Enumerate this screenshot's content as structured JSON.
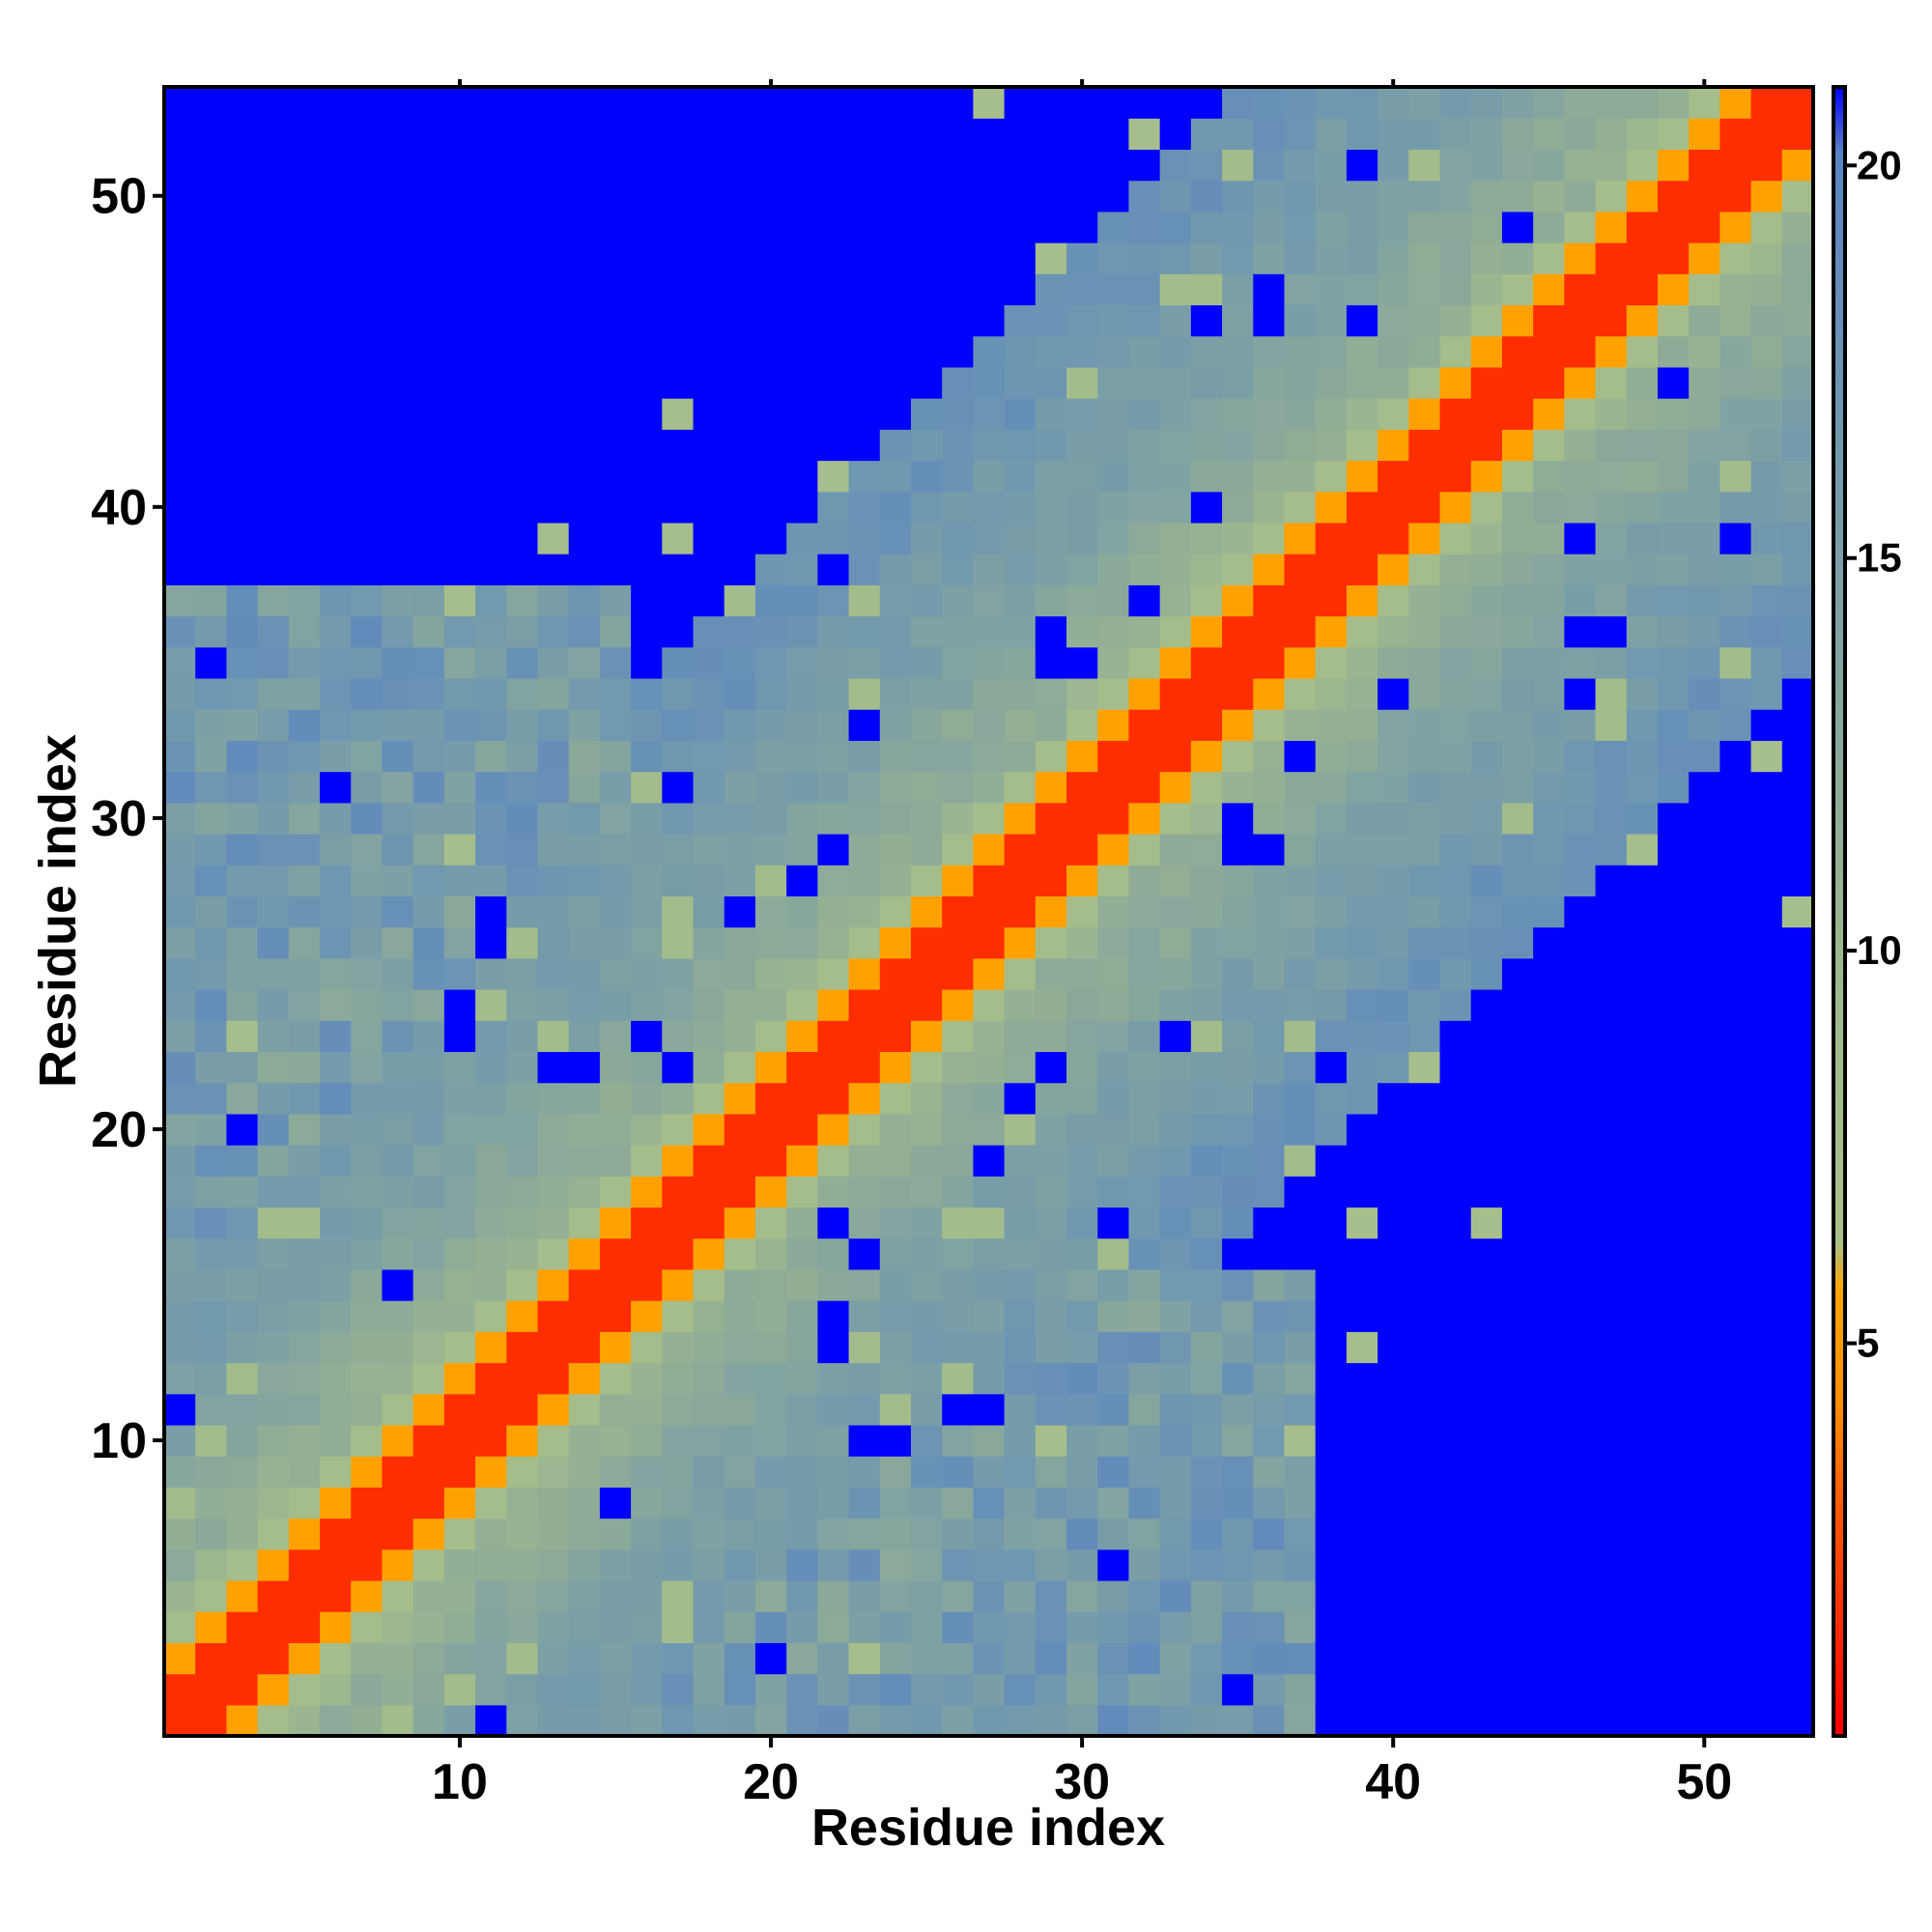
{
  "chart_data": {
    "type": "heatmap",
    "title": "",
    "xlabel": "Residue index",
    "ylabel": "Residue index",
    "n_residues": 53,
    "xlim": [
      0.5,
      53.5
    ],
    "ylim": [
      0.5,
      53.5
    ],
    "x_ticks": [
      10,
      20,
      30,
      40,
      50
    ],
    "y_ticks": [
      10,
      20,
      30,
      40,
      50
    ],
    "colorbar": {
      "ticks": [
        5,
        10,
        15,
        20
      ],
      "range": [
        0,
        21
      ],
      "colors": [
        "#ff0000",
        "#ff5a00",
        "#ff8c00",
        "#ffa500",
        "#a8bf8a",
        "#9fba8d",
        "#8aa89a",
        "#6f98b0",
        "#5b83c2",
        "#0000ff"
      ],
      "stops": [
        0,
        0.14,
        0.2,
        0.27,
        0.3,
        0.45,
        0.6,
        0.8,
        0.96,
        1.0
      ]
    },
    "value_model": "distance grows with sequence separation |i-j|; values above ~20 shown as blue",
    "band_profile": {
      "sep_0_1": 1.5,
      "sep_2": 5.5,
      "sep_3": 7.5,
      "sep_4_8": 11,
      "sep_9_14": 14.5,
      "sep_15_18": 17.5,
      "far": 25
    }
  }
}
